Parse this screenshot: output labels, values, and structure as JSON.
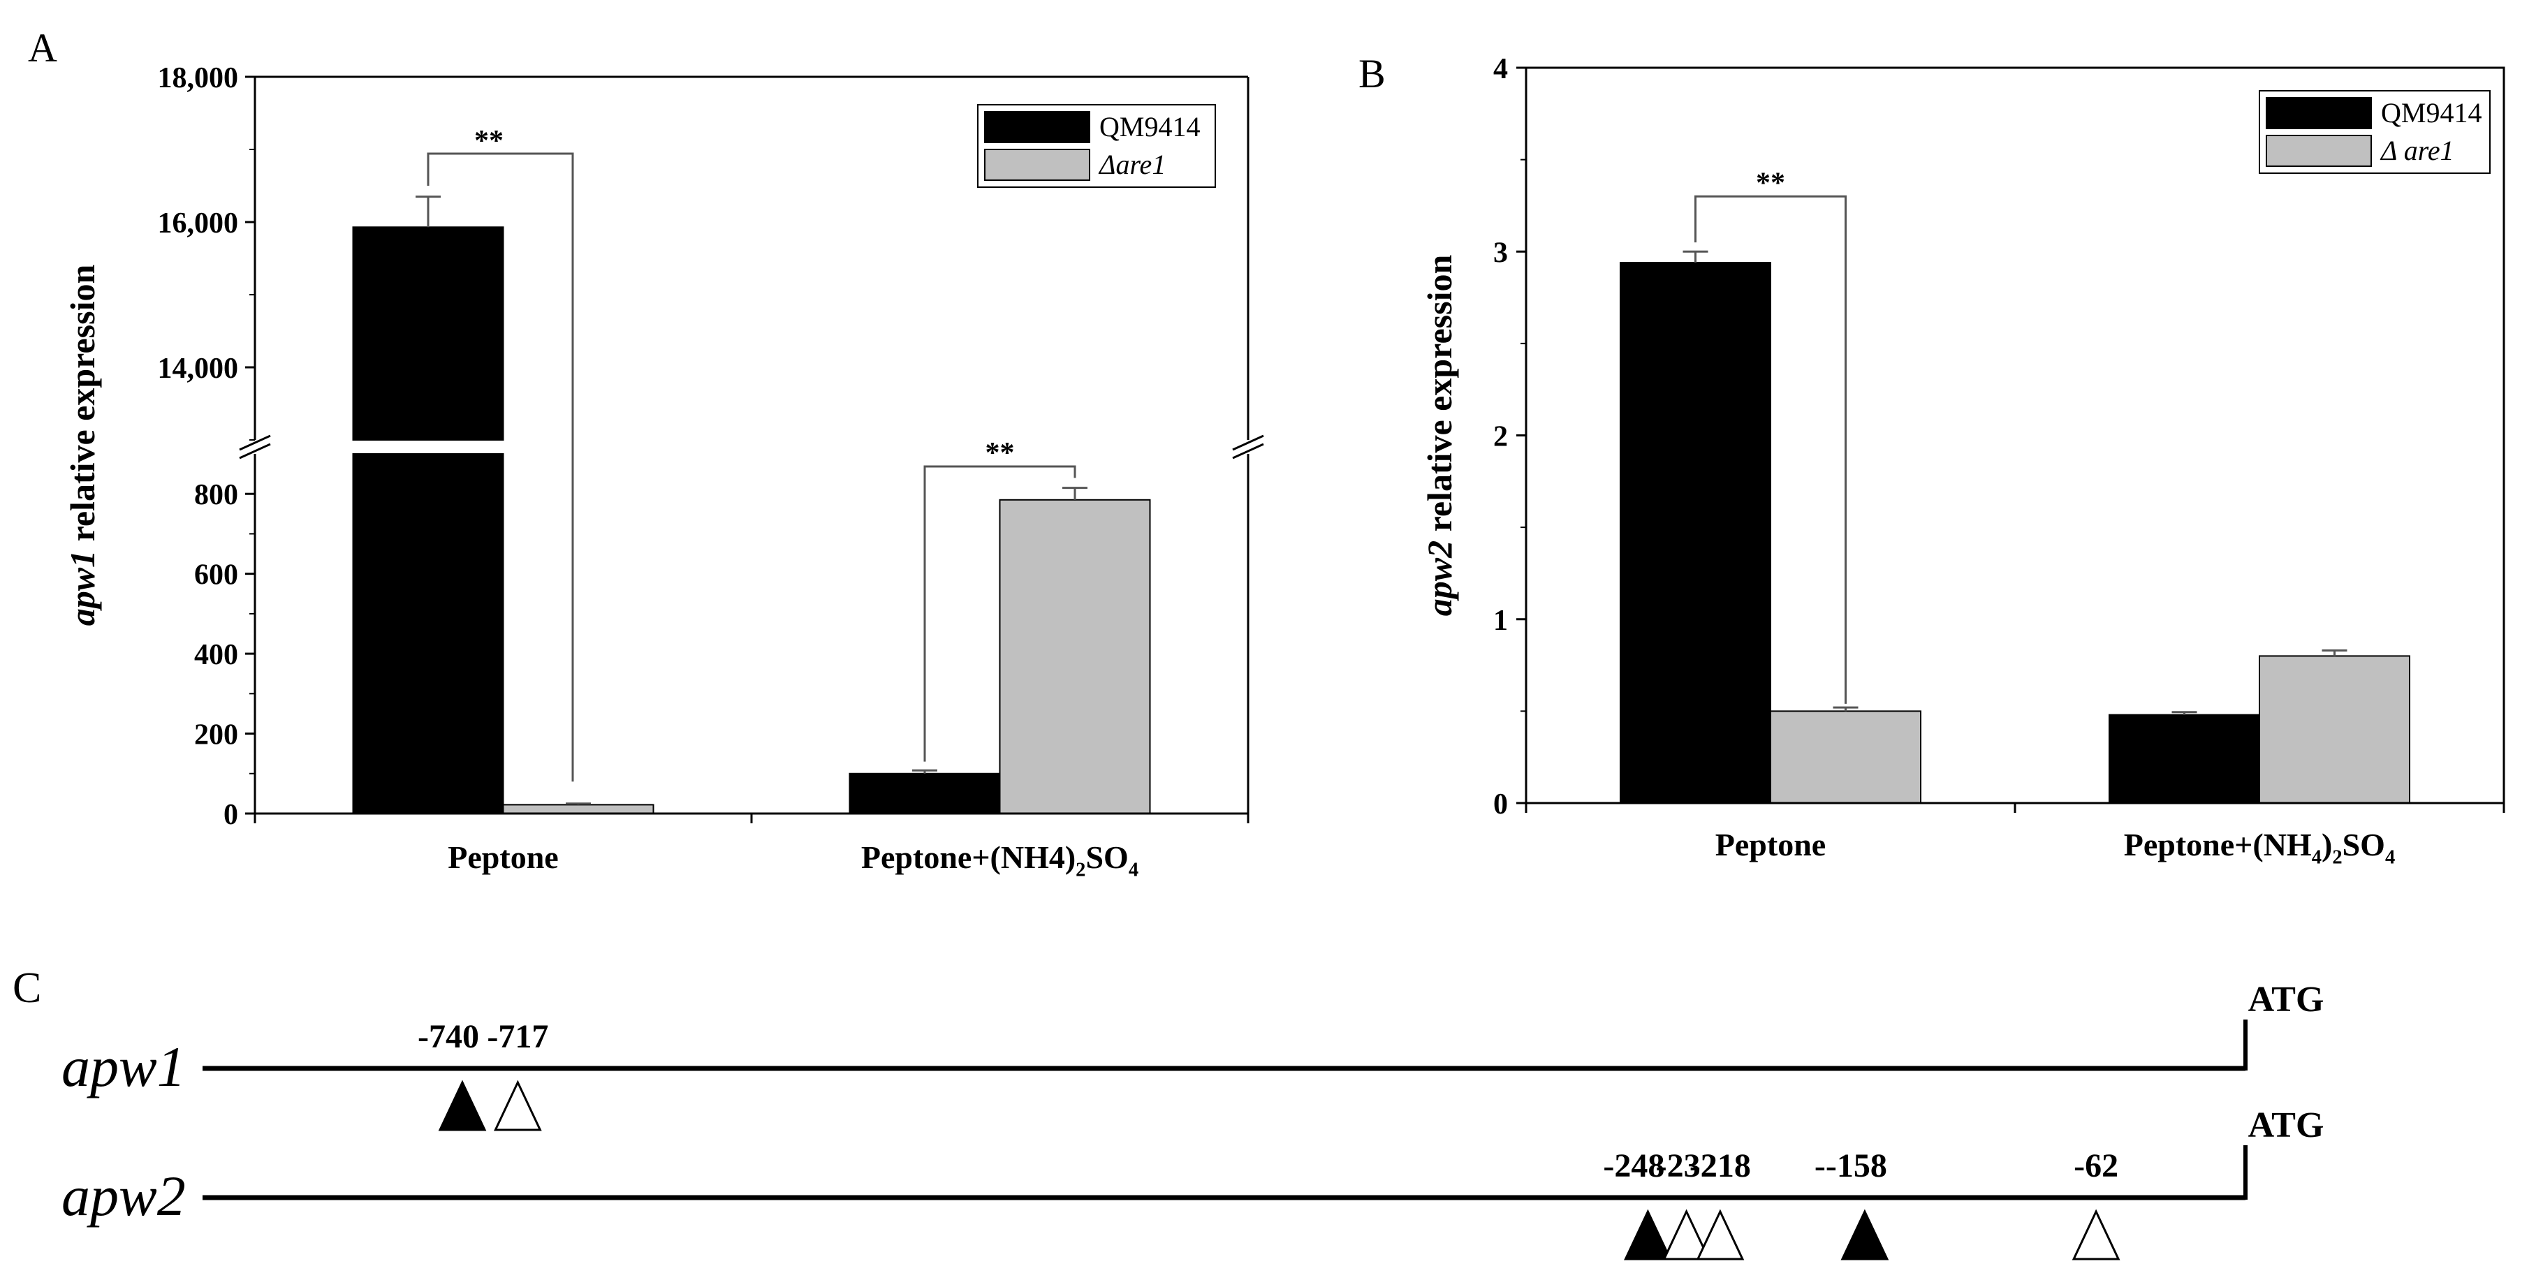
{
  "colors": {
    "qm9414": "#000000",
    "are1": "#c0c0c0",
    "axis": "#000000"
  },
  "chart_data": [
    {
      "panel": "A",
      "type": "bar",
      "ylabel_gene": "apw1",
      "ylabel_rest": " relative expression",
      "xlabel": "",
      "categories": [
        "Peptone",
        "Peptone+(NH4)2SO4"
      ],
      "category_labels": [
        {
          "parts": [
            {
              "text": "Peptone"
            }
          ]
        },
        {
          "parts": [
            {
              "text": "Peptone+(NH4)"
            },
            {
              "text": "2",
              "sub": true
            },
            {
              "text": "SO"
            },
            {
              "text": "4",
              "sub": true
            }
          ]
        }
      ],
      "series": [
        {
          "name": "QM9414",
          "values": [
            15930,
            100
          ],
          "errors": [
            420,
            8
          ]
        },
        {
          "name": "Δare1",
          "values": [
            22,
            785
          ],
          "errors": [
            3,
            30
          ]
        }
      ],
      "legend": [
        {
          "text": "QM9414",
          "italic": false
        },
        {
          "text": "Δare1",
          "italic": true
        }
      ],
      "axis_break": true,
      "ylim_lower": [
        0,
        900
      ],
      "ylim_upper": [
        13000,
        18000
      ],
      "yticks_lower": [
        "0",
        "200",
        "400",
        "600",
        "800"
      ],
      "yticks_upper": [
        "14,000",
        "16,000",
        "18,000"
      ],
      "significance": [
        {
          "category": 0,
          "label": "**",
          "left_top": 16500,
          "right_top": 80
        },
        {
          "category": 1,
          "label": "**",
          "left_top": 130,
          "right_top": 840,
          "top": 950
        }
      ]
    },
    {
      "panel": "B",
      "type": "bar",
      "ylabel_gene": "apw2",
      "ylabel_rest": " relative expression",
      "xlabel": "",
      "categories": [
        "Peptone",
        "Peptone+(NH4)2SO4"
      ],
      "category_labels": [
        {
          "parts": [
            {
              "text": "Peptone"
            }
          ]
        },
        {
          "parts": [
            {
              "text": "Peptone+(NH"
            },
            {
              "text": "4",
              "sub": true
            },
            {
              "text": ")"
            },
            {
              "text": "2",
              "sub": true
            },
            {
              "text": "SO"
            },
            {
              "text": "4",
              "sub": true
            }
          ]
        }
      ],
      "series": [
        {
          "name": "QM9414",
          "values": [
            2.94,
            0.48
          ],
          "errors": [
            0.06,
            0.015
          ]
        },
        {
          "name": "Δ are1",
          "values": [
            0.5,
            0.8
          ],
          "errors": [
            0.02,
            0.03
          ]
        }
      ],
      "legend": [
        {
          "text": "QM9414",
          "italic": false
        },
        {
          "text": "Δ are1",
          "italic": true
        }
      ],
      "ylim": [
        0,
        4
      ],
      "yticks": [
        "0",
        "1",
        "2",
        "3",
        "4"
      ],
      "significance": [
        {
          "category": 0,
          "label": "**",
          "left_top": 3.05,
          "right_top": 0.54,
          "top": 3.3
        }
      ]
    }
  ],
  "panel_labels": {
    "a": "A",
    "b": "B",
    "c": "C"
  },
  "promoter": {
    "start_codon": "ATG",
    "genes": [
      {
        "name": "apw1",
        "sites": [
          {
            "position": -740,
            "label": "-740",
            "filled": true
          },
          {
            "position": -717,
            "label": "-717",
            "filled": false
          }
        ]
      },
      {
        "name": "apw2",
        "sites": [
          {
            "position": -248,
            "label": "-248",
            "filled": true
          },
          {
            "position": -232,
            "label": "-232",
            "filled": false
          },
          {
            "position": -218,
            "label": "-218",
            "filled": false
          },
          {
            "position": -158,
            "label": "--158",
            "filled": true
          },
          {
            "position": -62,
            "label": "-62",
            "filled": false
          }
        ]
      }
    ]
  }
}
